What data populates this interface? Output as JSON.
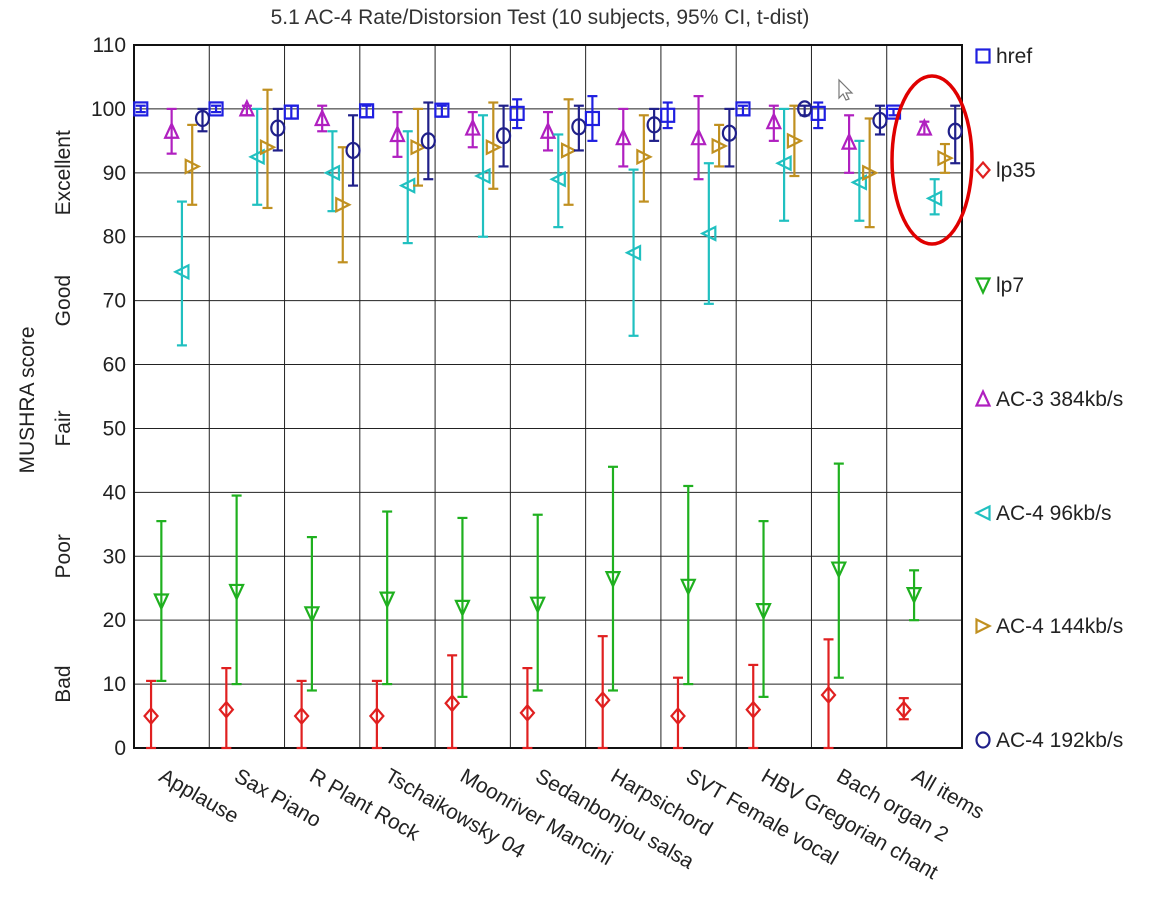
{
  "chart_data": {
    "type": "scatter",
    "title": "5.1 AC-4 Rate/Distorsion Test (10 subjects, 95% CI, t-dist)",
    "ylabel": "MUSHRA score",
    "ylim": [
      0,
      110
    ],
    "yticks": [
      0,
      10,
      20,
      30,
      40,
      50,
      60,
      70,
      80,
      90,
      100,
      110
    ],
    "quality_labels": [
      {
        "label": "Excellent",
        "center": 90
      },
      {
        "label": "Good",
        "center": 70
      },
      {
        "label": "Fair",
        "center": 50
      },
      {
        "label": "Poor",
        "center": 30
      },
      {
        "label": "Bad",
        "center": 10
      }
    ],
    "categories": [
      "Applause",
      "Sax Piano",
      "R Plant Rock",
      "Tschaikowsky 04",
      "Moonriver Mancini",
      "Sedanbonjou salsa",
      "Harpsichord",
      "SVT Female vocal",
      "HBV Gregorian chant",
      "Bach organ 2",
      "All items"
    ],
    "grid": true,
    "legend_position": "right",
    "series": [
      {
        "name": "href",
        "color": "#1f1fe0",
        "marker": "square",
        "values": [
          100,
          100,
          99.5,
          99.7,
          99.8,
          99.3,
          98.5,
          99,
          100,
          99.3,
          99.5
        ],
        "ci": [
          [
            99.5,
            100.5
          ],
          [
            99.5,
            100.5
          ],
          [
            98.5,
            100.5
          ],
          [
            98.7,
            100.5
          ],
          [
            98.8,
            100.5
          ],
          [
            97,
            101.5
          ],
          [
            95,
            102
          ],
          [
            97,
            101
          ],
          [
            99,
            100.5
          ],
          [
            97,
            101
          ],
          [
            99,
            100
          ]
        ]
      },
      {
        "name": "lp35",
        "color": "#e02020",
        "marker": "diamond",
        "values": [
          5,
          6,
          5,
          5,
          7,
          5.5,
          7.5,
          5,
          6,
          8.3,
          6
        ],
        "ci": [
          [
            0,
            10.5
          ],
          [
            0,
            12.5
          ],
          [
            0,
            10.5
          ],
          [
            0,
            10.5
          ],
          [
            0,
            14.5
          ],
          [
            0,
            12.5
          ],
          [
            0,
            17.5
          ],
          [
            0,
            11
          ],
          [
            0,
            13
          ],
          [
            0,
            17
          ],
          [
            4.5,
            7.8
          ]
        ]
      },
      {
        "name": "lp7",
        "color": "#1fb01f",
        "marker": "triangle-down",
        "values": [
          23,
          24.5,
          21,
          23.3,
          22,
          22.5,
          26.5,
          25.3,
          21.5,
          28,
          24
        ],
        "ci": [
          [
            10.5,
            35.5
          ],
          [
            10,
            39.5
          ],
          [
            9,
            33
          ],
          [
            10,
            37
          ],
          [
            8,
            36
          ],
          [
            9,
            36.5
          ],
          [
            9,
            44
          ],
          [
            10,
            41
          ],
          [
            8,
            35.5
          ],
          [
            11,
            44.5
          ],
          [
            20,
            27.8
          ]
        ]
      },
      {
        "name": "AC-3 384kb/s",
        "color": "#b020c0",
        "marker": "triangle-up",
        "values": [
          96.5,
          100,
          98.5,
          96,
          97,
          96.5,
          95.5,
          95.5,
          98,
          94.8,
          97
        ],
        "ci": [
          [
            93,
            100
          ],
          [
            99,
            100.5
          ],
          [
            96.5,
            100.5
          ],
          [
            92.5,
            99.5
          ],
          [
            94,
            99.5
          ],
          [
            93.5,
            99.5
          ],
          [
            91,
            100
          ],
          [
            89,
            102
          ],
          [
            95,
            100.5
          ],
          [
            90,
            99
          ],
          [
            96,
            98
          ]
        ]
      },
      {
        "name": "AC-4 96kb/s",
        "color": "#20c0c0",
        "marker": "triangle-left",
        "values": [
          74.5,
          92.5,
          90,
          88,
          89.5,
          89,
          77.5,
          80.5,
          91.5,
          88.5,
          86
        ],
        "ci": [
          [
            63,
            85.5
          ],
          [
            85,
            100
          ],
          [
            84,
            96.5
          ],
          [
            79,
            96.5
          ],
          [
            80,
            99
          ],
          [
            81.5,
            96
          ],
          [
            64.5,
            90.5
          ],
          [
            69.5,
            91.5
          ],
          [
            82.5,
            100
          ],
          [
            82.5,
            95
          ],
          [
            83.5,
            89
          ]
        ]
      },
      {
        "name": "AC-4 144kb/s",
        "color": "#c09020",
        "marker": "triangle-right",
        "values": [
          91,
          94,
          85,
          94,
          94,
          93.5,
          92.5,
          94.2,
          95,
          90,
          92.3
        ],
        "ci": [
          [
            85,
            97.5
          ],
          [
            84.5,
            103
          ],
          [
            76,
            94
          ],
          [
            88,
            100
          ],
          [
            87.5,
            101
          ],
          [
            85,
            101.5
          ],
          [
            85.5,
            99
          ],
          [
            91,
            97.5
          ],
          [
            89.5,
            100.5
          ],
          [
            81.5,
            98.5
          ],
          [
            90,
            94.5
          ]
        ]
      },
      {
        "name": "AC-4 192kb/s",
        "color": "#20208a",
        "marker": "circle",
        "values": [
          98.5,
          97,
          93.5,
          95,
          95.8,
          97.2,
          97.5,
          96.2,
          100,
          98.2,
          96.5
        ],
        "ci": [
          [
            96.5,
            100
          ],
          [
            93.5,
            100
          ],
          [
            88,
            99
          ],
          [
            89,
            101
          ],
          [
            91,
            100.5
          ],
          [
            93.5,
            100.5
          ],
          [
            95,
            100
          ],
          [
            91,
            100
          ],
          [
            99,
            100.5
          ],
          [
            96,
            100.5
          ],
          [
            91.5,
            100.5
          ]
        ]
      }
    ]
  }
}
